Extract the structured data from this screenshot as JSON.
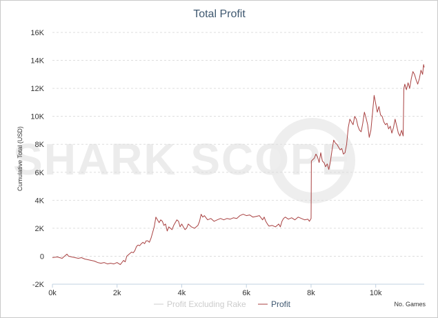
{
  "chart_data": {
    "type": "line",
    "title": "Total Profit",
    "ylabel": "Cumulative Total (USD)",
    "xlabel": "No. Games",
    "xlim": [
      0,
      11500
    ],
    "ylim": [
      -2000,
      16000
    ],
    "x_ticks": [
      {
        "value": 0,
        "label": "0k"
      },
      {
        "value": 2000,
        "label": "2k"
      },
      {
        "value": 4000,
        "label": "4k"
      },
      {
        "value": 6000,
        "label": "6k"
      },
      {
        "value": 8000,
        "label": "8k"
      },
      {
        "value": 10000,
        "label": "10k"
      }
    ],
    "y_ticks": [
      {
        "value": -2000,
        "label": "-2K"
      },
      {
        "value": 0,
        "label": "0"
      },
      {
        "value": 2000,
        "label": "2K"
      },
      {
        "value": 4000,
        "label": "4K"
      },
      {
        "value": 6000,
        "label": "6K"
      },
      {
        "value": 8000,
        "label": "8K"
      },
      {
        "value": 10000,
        "label": "10K"
      },
      {
        "value": 12000,
        "label": "12K"
      },
      {
        "value": 14000,
        "label": "14K"
      },
      {
        "value": 16000,
        "label": "16K"
      }
    ],
    "grid": true,
    "legend_position": "bottom",
    "watermark": "SHARK SCOPE",
    "series": [
      {
        "name": "Profit Excluding Rake",
        "color": "#cccccc",
        "visible": false,
        "points": []
      },
      {
        "name": "Profit",
        "color": "#a84040",
        "visible": true,
        "points": [
          [
            0,
            -100
          ],
          [
            150,
            -50
          ],
          [
            300,
            -150
          ],
          [
            400,
            50
          ],
          [
            450,
            150
          ],
          [
            500,
            0
          ],
          [
            600,
            -50
          ],
          [
            700,
            -100
          ],
          [
            800,
            -150
          ],
          [
            900,
            -100
          ],
          [
            1000,
            -200
          ],
          [
            1100,
            -250
          ],
          [
            1200,
            -300
          ],
          [
            1300,
            -350
          ],
          [
            1400,
            -450
          ],
          [
            1500,
            -500
          ],
          [
            1600,
            -450
          ],
          [
            1700,
            -550
          ],
          [
            1800,
            -500
          ],
          [
            1900,
            -550
          ],
          [
            2000,
            -450
          ],
          [
            2100,
            -600
          ],
          [
            2200,
            -300
          ],
          [
            2250,
            -400
          ],
          [
            2300,
            0
          ],
          [
            2350,
            100
          ],
          [
            2400,
            200
          ],
          [
            2450,
            300
          ],
          [
            2500,
            250
          ],
          [
            2550,
            400
          ],
          [
            2600,
            700
          ],
          [
            2650,
            800
          ],
          [
            2700,
            750
          ],
          [
            2750,
            900
          ],
          [
            2800,
            1000
          ],
          [
            2850,
            900
          ],
          [
            2900,
            1100
          ],
          [
            2950,
            1100
          ],
          [
            3000,
            1000
          ],
          [
            3050,
            1300
          ],
          [
            3100,
            1700
          ],
          [
            3150,
            2100
          ],
          [
            3200,
            2800
          ],
          [
            3250,
            2600
          ],
          [
            3300,
            2400
          ],
          [
            3350,
            2600
          ],
          [
            3400,
            2500
          ],
          [
            3450,
            2200
          ],
          [
            3500,
            2300
          ],
          [
            3550,
            1800
          ],
          [
            3600,
            2100
          ],
          [
            3650,
            2000
          ],
          [
            3700,
            1900
          ],
          [
            3750,
            2200
          ],
          [
            3800,
            2400
          ],
          [
            3850,
            2600
          ],
          [
            3900,
            2500
          ],
          [
            3950,
            2100
          ],
          [
            4000,
            2300
          ],
          [
            4050,
            2100
          ],
          [
            4100,
            1900
          ],
          [
            4150,
            2000
          ],
          [
            4200,
            2300
          ],
          [
            4300,
            2100
          ],
          [
            4400,
            2000
          ],
          [
            4500,
            2200
          ],
          [
            4550,
            2500
          ],
          [
            4600,
            3000
          ],
          [
            4650,
            2800
          ],
          [
            4700,
            2900
          ],
          [
            4800,
            2600
          ],
          [
            4900,
            2700
          ],
          [
            5000,
            2500
          ],
          [
            5100,
            2600
          ],
          [
            5200,
            2700
          ],
          [
            5300,
            2600
          ],
          [
            5400,
            2700
          ],
          [
            5500,
            2650
          ],
          [
            5600,
            2750
          ],
          [
            5700,
            2700
          ],
          [
            5800,
            2900
          ],
          [
            5900,
            3000
          ],
          [
            6000,
            2900
          ],
          [
            6100,
            2950
          ],
          [
            6200,
            2800
          ],
          [
            6300,
            2850
          ],
          [
            6400,
            2900
          ],
          [
            6500,
            2600
          ],
          [
            6550,
            2800
          ],
          [
            6600,
            2500
          ],
          [
            6650,
            2300
          ],
          [
            6700,
            2150
          ],
          [
            6800,
            2200
          ],
          [
            6900,
            2100
          ],
          [
            7000,
            2300
          ],
          [
            7050,
            2100
          ],
          [
            7100,
            2500
          ],
          [
            7150,
            2700
          ],
          [
            7200,
            2800
          ],
          [
            7300,
            2650
          ],
          [
            7400,
            2750
          ],
          [
            7500,
            2600
          ],
          [
            7600,
            2800
          ],
          [
            7700,
            2700
          ],
          [
            7800,
            2600
          ],
          [
            7900,
            2650
          ],
          [
            7950,
            2500
          ],
          [
            8000,
            2700
          ],
          [
            8010,
            6800
          ],
          [
            8050,
            6900
          ],
          [
            8100,
            7000
          ],
          [
            8150,
            7300
          ],
          [
            8200,
            7100
          ],
          [
            8250,
            6700
          ],
          [
            8300,
            7400
          ],
          [
            8350,
            6800
          ],
          [
            8400,
            6700
          ],
          [
            8450,
            6400
          ],
          [
            8500,
            6600
          ],
          [
            8550,
            6200
          ],
          [
            8600,
            6800
          ],
          [
            8650,
            7600
          ],
          [
            8700,
            8300
          ],
          [
            8750,
            8100
          ],
          [
            8800,
            8000
          ],
          [
            8850,
            7800
          ],
          [
            8900,
            7600
          ],
          [
            8950,
            7700
          ],
          [
            9000,
            7300
          ],
          [
            9050,
            7400
          ],
          [
            9100,
            8000
          ],
          [
            9150,
            9200
          ],
          [
            9200,
            9800
          ],
          [
            9250,
            9600
          ],
          [
            9300,
            9400
          ],
          [
            9350,
            10000
          ],
          [
            9400,
            9800
          ],
          [
            9450,
            9300
          ],
          [
            9500,
            9000
          ],
          [
            9550,
            8900
          ],
          [
            9600,
            9500
          ],
          [
            9650,
            10300
          ],
          [
            9700,
            9900
          ],
          [
            9750,
            9400
          ],
          [
            9800,
            8500
          ],
          [
            9850,
            9000
          ],
          [
            9900,
            10200
          ],
          [
            9950,
            11500
          ],
          [
            10000,
            10900
          ],
          [
            10050,
            10300
          ],
          [
            10100,
            10700
          ],
          [
            10150,
            10100
          ],
          [
            10200,
            10000
          ],
          [
            10250,
            9600
          ],
          [
            10300,
            9400
          ],
          [
            10350,
            9500
          ],
          [
            10400,
            9100
          ],
          [
            10450,
            9300
          ],
          [
            10500,
            8800
          ],
          [
            10550,
            9200
          ],
          [
            10600,
            9800
          ],
          [
            10650,
            9300
          ],
          [
            10700,
            8800
          ],
          [
            10750,
            8600
          ],
          [
            10800,
            9000
          ],
          [
            10850,
            8600
          ],
          [
            10870,
            12000
          ],
          [
            10900,
            12300
          ],
          [
            10950,
            11900
          ],
          [
            11000,
            12400
          ],
          [
            11050,
            12000
          ],
          [
            11100,
            12700
          ],
          [
            11150,
            13200
          ],
          [
            11200,
            13000
          ],
          [
            11250,
            12600
          ],
          [
            11300,
            12300
          ],
          [
            11350,
            12700
          ],
          [
            11400,
            13300
          ],
          [
            11450,
            13000
          ],
          [
            11480,
            13700
          ],
          [
            11500,
            13500
          ]
        ]
      }
    ]
  }
}
